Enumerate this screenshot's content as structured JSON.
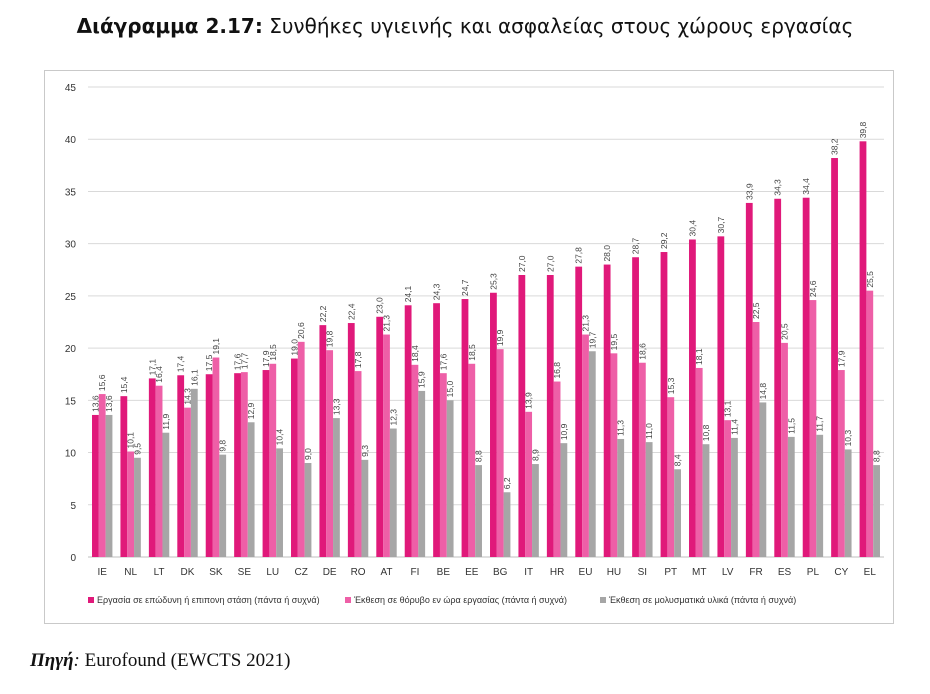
{
  "header": {
    "title_bold": "Διάγραμμα 2.17:",
    "title_rest": "Συνθήκες υγιεινής και ασφαλείας στους χώρους εργασίας"
  },
  "footer": {
    "source_label": "Πηγή",
    "source_colon": ":",
    "source_text": "Eurofound (EWCTS 2021)"
  },
  "colors": {
    "series1": "#e0197a",
    "series2": "#ee5fa7",
    "series3": "#a6a6a6",
    "grid": "#d9d9d9",
    "axis_text": "#333333"
  },
  "chart_data": {
    "type": "bar",
    "ylim": [
      0,
      45
    ],
    "yticks": [
      0,
      5,
      10,
      15,
      20,
      25,
      30,
      35,
      40,
      45
    ],
    "grid": true,
    "legend_position": "bottom",
    "categories": [
      "IE",
      "NL",
      "LT",
      "DK",
      "SK",
      "SE",
      "LU",
      "CZ",
      "DE",
      "RO",
      "AT",
      "FI",
      "BE",
      "EE",
      "BG",
      "IT",
      "HR",
      "EU",
      "HU",
      "SI",
      "PT",
      "MT",
      "LV",
      "FR",
      "ES",
      "PL",
      "CY",
      "EL"
    ],
    "series": [
      {
        "name": "Εργασία σε επώδυνη ή επιπονη στάση (πάντα ή συχνά)",
        "values": [
          13.6,
          15.4,
          17.1,
          17.4,
          17.5,
          17.6,
          17.9,
          19.0,
          22.2,
          22.4,
          23.0,
          24.1,
          24.3,
          24.7,
          25.3,
          27.0,
          27.0,
          27.8,
          28.0,
          28.7,
          29.2,
          30.4,
          30.7,
          33.9,
          34.3,
          34.4,
          38.2,
          39.8
        ],
        "labels": [
          "13,6",
          "15,4",
          "17,1",
          "17,4",
          "17,5",
          "17,6",
          "17,9",
          "19,0",
          "22,2",
          "22,4",
          "23,0",
          "24,1",
          "24,3",
          "24,7",
          "25,3",
          "27,0",
          "27,0",
          "27,8",
          "28,0",
          "28,7",
          "29,2",
          "30,4",
          "30,7",
          "33,9",
          "34,3",
          "34,4",
          "38,2",
          "39,8"
        ]
      },
      {
        "name": "Έκθεση σε θόρυβο εν ώρα εργασίας (πάντα ή συχνά)",
        "values": [
          15.6,
          10.1,
          16.4,
          14.3,
          19.1,
          17.7,
          18.5,
          20.6,
          19.8,
          17.8,
          21.3,
          18.4,
          17.6,
          18.5,
          19.9,
          13.9,
          16.8,
          21.3,
          19.5,
          18.6,
          15.3,
          18.1,
          13.1,
          22.5,
          20.5,
          24.6,
          17.9,
          25.5
        ],
        "labels": [
          "15,6",
          "10,1",
          "16,4",
          "14,3",
          "19,1",
          "17,7",
          "18,5",
          "20,6",
          "19,8",
          "17,8",
          "21,3",
          "18,4",
          "17,6",
          "18,5",
          "19,9",
          "13,9",
          "16,8",
          "21,3",
          "19,5",
          "18,6",
          "15,3",
          "18,1",
          "13,1",
          "22,5",
          "20,5",
          "24,6",
          "17,9",
          "25,5"
        ]
      },
      {
        "name": "Έκθεση σε μολυσματικά υλικά (πάντα ή συχνά)",
        "values": [
          13.6,
          9.5,
          11.9,
          16.1,
          9.8,
          12.9,
          10.4,
          9.0,
          13.3,
          9.3,
          12.3,
          15.9,
          15.0,
          8.8,
          6.2,
          8.9,
          10.9,
          19.7,
          11.3,
          11.0,
          8.4,
          10.8,
          11.4,
          14.8,
          11.5,
          11.7,
          10.3,
          8.8
        ],
        "labels": [
          "13,6",
          "9,5",
          "11,9",
          "16,1",
          "9,8",
          "12,9",
          "10,4",
          "9,0",
          "13,3",
          "9,3",
          "12,3",
          "15,9",
          "15,0",
          "8,8",
          "6,2",
          "8,9",
          "10,9",
          "19,7",
          "11,3",
          "11,0",
          "8,4",
          "10,8",
          "11,4",
          "14,8",
          "11,5",
          "11,7",
          "10,3",
          "8,8"
        ]
      }
    ]
  }
}
